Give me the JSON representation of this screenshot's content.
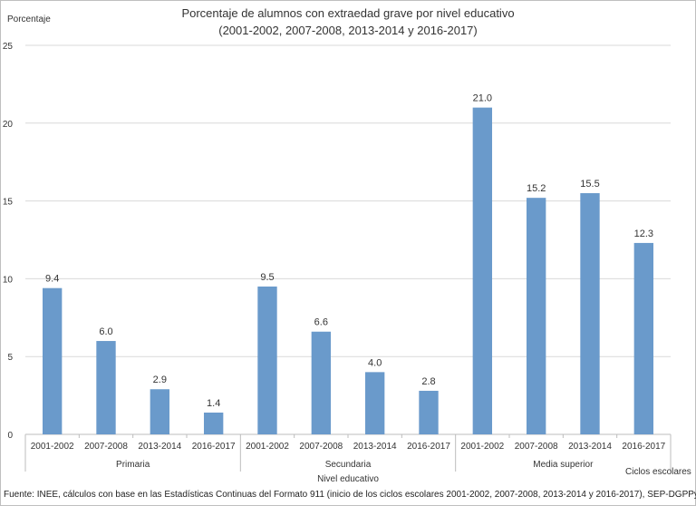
{
  "chart_data": {
    "type": "bar",
    "title": "Porcentaje de alumnos con extraedad grave por nivel educativo",
    "subtitle": "(2001-2002, 2007-2008, 2013-2014 y 2016-2017)",
    "ylabel": "Porcentaje",
    "xlabel": "Nivel educativo",
    "series_note": "Ciclos escolares",
    "ylim": [
      0,
      25
    ],
    "yticks": [
      0,
      5,
      10,
      15,
      20,
      25
    ],
    "grid": true,
    "bar_color": "#6a9acb",
    "groups": [
      {
        "name": "Primaria",
        "categories": [
          "2001-2002",
          "2007-2008",
          "2013-2014",
          "2016-2017"
        ],
        "values": [
          9.4,
          6.0,
          2.9,
          1.4
        ],
        "labels": [
          "9.4",
          "6.0",
          "2.9",
          "1.4"
        ]
      },
      {
        "name": "Secundaria",
        "categories": [
          "2001-2002",
          "2007-2008",
          "2013-2014",
          "2016-2017"
        ],
        "values": [
          9.5,
          6.6,
          4.0,
          2.8
        ],
        "labels": [
          "9.5",
          "6.6",
          "4.0",
          "2.8"
        ]
      },
      {
        "name": "Media superior",
        "categories": [
          "2001-2002",
          "2007-2008",
          "2013-2014",
          "2016-2017"
        ],
        "values": [
          21.0,
          15.2,
          15.5,
          12.3
        ],
        "labels": [
          "21.0",
          "15.2",
          "15.5",
          "12.3"
        ]
      }
    ],
    "source": "Fuente: INEE, cálculos con base en las Estadísticas Continuas del Formato 911 (inicio de los ciclos escolares 2001-2002, 2007-2008, 2013-2014 y 2016-2017), SEP-DGPPyEE."
  }
}
